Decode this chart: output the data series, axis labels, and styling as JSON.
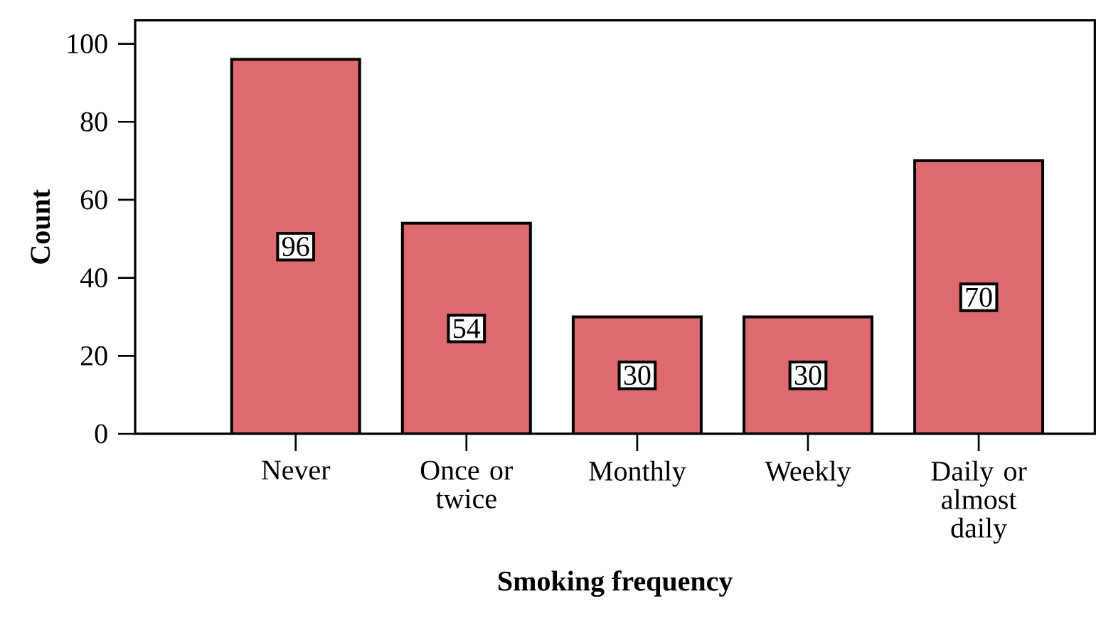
{
  "chart_data": {
    "type": "bar",
    "categories": [
      "Never",
      "Once or twice",
      "Monthly",
      "Weekly",
      "Daily or almost daily"
    ],
    "values": [
      96,
      54,
      30,
      30,
      70
    ],
    "color": "#de6a70",
    "ylim": [
      0,
      106
    ],
    "yticks": [
      0,
      20,
      40,
      60,
      80,
      100
    ],
    "xlabel": "Smoking frequency",
    "ylabel": "Count",
    "data_labels": true
  }
}
